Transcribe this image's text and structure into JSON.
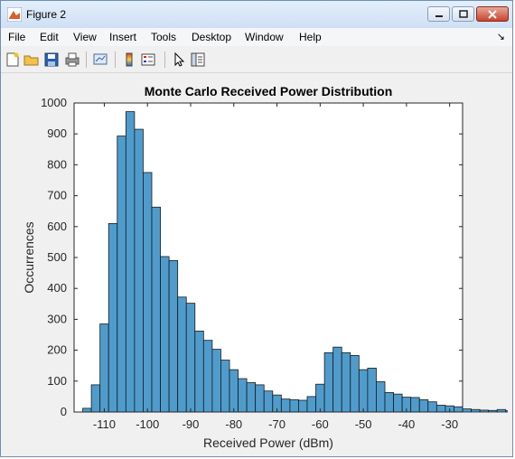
{
  "window": {
    "title": "Figure 2",
    "menu": [
      "File",
      "Edit",
      "View",
      "Insert",
      "Tools",
      "Desktop",
      "Window",
      "Help"
    ],
    "menu_arrow": "↘",
    "toolbar_icons": [
      "new-figure-icon",
      "open-file-icon",
      "save-icon",
      "print-icon",
      "link-plot-icon",
      "colorbar-icon",
      "legend-icon",
      "pointer-icon",
      "property-editor-icon"
    ]
  },
  "chart_data": {
    "type": "bar",
    "title": "Monte Carlo Received Power Distribution",
    "xlabel": "Received Power (dBm)",
    "ylabel": "Occurrences",
    "xlim": [
      -117,
      -27
    ],
    "ylim": [
      0,
      1000
    ],
    "xticks": [
      -110,
      -100,
      -90,
      -80,
      -70,
      -60,
      -50,
      -40,
      -30
    ],
    "yticks": [
      0,
      100,
      200,
      300,
      400,
      500,
      600,
      700,
      800,
      900,
      1000
    ],
    "bin_width": 2,
    "bin_start": -115,
    "values": [
      12,
      88,
      285,
      610,
      893,
      972,
      915,
      775,
      663,
      503,
      490,
      372,
      352,
      262,
      232,
      203,
      168,
      137,
      108,
      95,
      88,
      68,
      55,
      42,
      40,
      38,
      50,
      90,
      192,
      210,
      192,
      183,
      137,
      142,
      98,
      63,
      58,
      48,
      47,
      40,
      33,
      22,
      20,
      17,
      10,
      8,
      6,
      5,
      8,
      4
    ]
  }
}
